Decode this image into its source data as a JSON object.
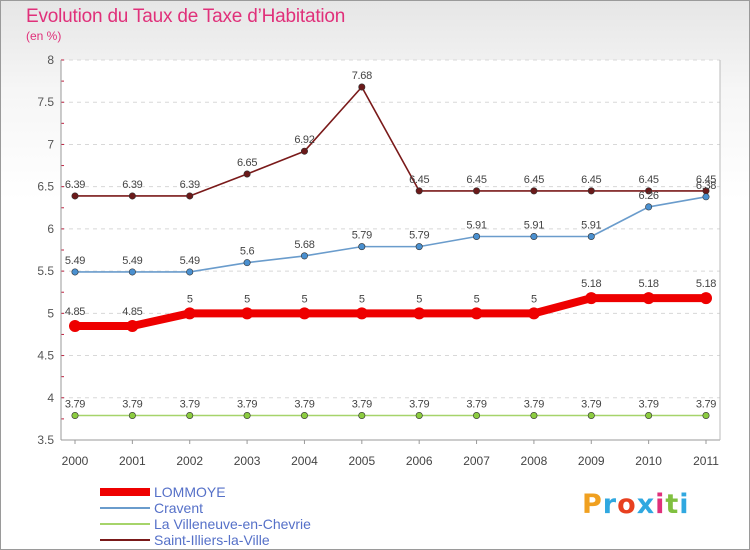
{
  "title": "Evolution du Taux de Taxe d’Habitation",
  "subtitle": "(en %)",
  "brand": "Proxiti",
  "brand_colors": [
    "#f0a020",
    "#30a8e0",
    "#e84020",
    "#30a8e0",
    "#e0307a",
    "#80c040",
    "#30a8e0"
  ],
  "chart_data": {
    "type": "line",
    "title": "Evolution du Taux de Taxe d’Habitation",
    "subtitle": "(en %)",
    "xlabel": "",
    "ylabel": "",
    "x": [
      "2000",
      "2001",
      "2002",
      "2003",
      "2004",
      "2005",
      "2006",
      "2007",
      "2008",
      "2009",
      "2010",
      "2011"
    ],
    "ylim": [
      3.5,
      8
    ],
    "yticks": [
      "3.5",
      "4",
      "4.5",
      "5",
      "5.5",
      "6",
      "6.5",
      "7",
      "7.5",
      "8"
    ],
    "grid": "dashed horizontal",
    "legend": "bottom-left",
    "series": [
      {
        "name": "Saint-Illiers-la-Ville",
        "color": "#7a1a1a",
        "marker": "#6b1a1a",
        "values": [
          6.39,
          6.39,
          6.39,
          6.65,
          6.92,
          7.68,
          6.45,
          6.45,
          6.45,
          6.45,
          6.45,
          6.45
        ],
        "labels": [
          "6.39",
          "6.39",
          "6.39",
          "6.65",
          "6.92",
          "7.68",
          "6.45",
          "6.45",
          "6.45",
          "6.45",
          "6.45",
          "6.45"
        ]
      },
      {
        "name": "Cravent",
        "color": "#6a9ccc",
        "marker": "#4a90d0",
        "values": [
          5.49,
          5.49,
          5.49,
          5.6,
          5.68,
          5.79,
          5.79,
          5.91,
          5.91,
          5.91,
          6.26,
          6.38
        ],
        "labels": [
          "5.49",
          "5.49",
          "5.49",
          "5.6",
          "5.68",
          "5.79",
          "5.79",
          "5.91",
          "5.91",
          "5.91",
          "6.26",
          "6.38"
        ]
      },
      {
        "name": "La Villeneuve-en-Chevrie",
        "color": "#a6d46a",
        "marker": "#8ccc40",
        "values": [
          3.79,
          3.79,
          3.79,
          3.79,
          3.79,
          3.79,
          3.79,
          3.79,
          3.79,
          3.79,
          3.79,
          3.79
        ],
        "labels": [
          "3.79",
          "3.79",
          "3.79",
          "3.79",
          "3.79",
          "3.79",
          "3.79",
          "3.79",
          "3.79",
          "3.79",
          "3.79",
          "3.79"
        ]
      },
      {
        "name": "LOMMOYE",
        "color": "#ee0000",
        "marker": "#ee0000",
        "values": [
          4.85,
          4.85,
          5,
          5,
          5,
          5,
          5,
          5,
          5,
          5.18,
          5.18,
          5.18
        ],
        "labels": [
          "4.85",
          "4.85",
          "5",
          "5",
          "5",
          "5",
          "5",
          "5",
          "5",
          "5.18",
          "5.18",
          "5.18"
        ]
      }
    ]
  },
  "legend": [
    {
      "name": "LOMMOYE",
      "color": "#ee0000"
    },
    {
      "name": "Cravent",
      "color": "#6a9ccc"
    },
    {
      "name": "La Villeneuve-en-Chevrie",
      "color": "#a6d46a"
    },
    {
      "name": "Saint-Illiers-la-Ville",
      "color": "#7a1a1a"
    }
  ]
}
